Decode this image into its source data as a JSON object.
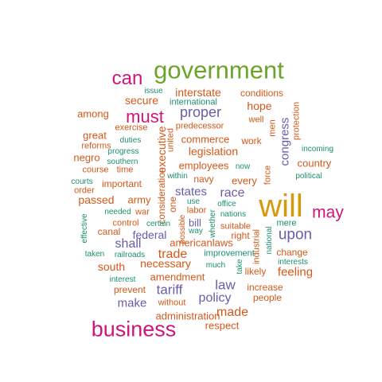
{
  "palette": {
    "green": "#6aa428",
    "magenta": "#d0157a",
    "gold": "#d49a0e",
    "purple": "#6a5caa",
    "orange": "#d4581a",
    "teal": "#1b9070"
  },
  "words": [
    {
      "text": "government",
      "color": "green"
    },
    {
      "text": "can",
      "color": "magenta"
    },
    {
      "text": "business",
      "color": "magenta"
    },
    {
      "text": "will",
      "color": "gold"
    },
    {
      "text": "may",
      "color": "magenta"
    },
    {
      "text": "must",
      "color": "magenta"
    },
    {
      "text": "proper",
      "color": "purple"
    },
    {
      "text": "interstate",
      "color": "orange"
    },
    {
      "text": "conditions",
      "color": "orange"
    },
    {
      "text": "issue",
      "color": "teal"
    },
    {
      "text": "international",
      "color": "teal"
    },
    {
      "text": "secure",
      "color": "orange"
    },
    {
      "text": "hope",
      "color": "orange"
    },
    {
      "text": "among",
      "color": "orange"
    },
    {
      "text": "well",
      "color": "orange"
    },
    {
      "text": "protection",
      "color": "orange"
    },
    {
      "text": "men",
      "color": "orange"
    },
    {
      "text": "predecessor",
      "color": "orange"
    },
    {
      "text": "congress",
      "color": "purple"
    },
    {
      "text": "great",
      "color": "orange"
    },
    {
      "text": "exercise",
      "color": "orange"
    },
    {
      "text": "duties",
      "color": "teal"
    },
    {
      "text": "united",
      "color": "orange"
    },
    {
      "text": "executive",
      "color": "orange"
    },
    {
      "text": "commerce",
      "color": "orange"
    },
    {
      "text": "work",
      "color": "orange"
    },
    {
      "text": "reforms",
      "color": "orange"
    },
    {
      "text": "progress",
      "color": "teal"
    },
    {
      "text": "legislation",
      "color": "orange"
    },
    {
      "text": "incoming",
      "color": "teal"
    },
    {
      "text": "negro",
      "color": "orange"
    },
    {
      "text": "southern",
      "color": "teal"
    },
    {
      "text": "employees",
      "color": "orange"
    },
    {
      "text": "now",
      "color": "teal"
    },
    {
      "text": "country",
      "color": "orange"
    },
    {
      "text": "course",
      "color": "orange"
    },
    {
      "text": "time",
      "color": "orange"
    },
    {
      "text": "within",
      "color": "teal"
    },
    {
      "text": "navy",
      "color": "orange"
    },
    {
      "text": "force",
      "color": "orange"
    },
    {
      "text": "political",
      "color": "teal"
    },
    {
      "text": "courts",
      "color": "teal"
    },
    {
      "text": "important",
      "color": "orange"
    },
    {
      "text": "every",
      "color": "orange"
    },
    {
      "text": "order",
      "color": "orange"
    },
    {
      "text": "consideration",
      "color": "orange"
    },
    {
      "text": "states",
      "color": "purple"
    },
    {
      "text": "race",
      "color": "purple"
    },
    {
      "text": "passed",
      "color": "orange"
    },
    {
      "text": "army",
      "color": "orange"
    },
    {
      "text": "one",
      "color": "orange"
    },
    {
      "text": "use",
      "color": "teal"
    },
    {
      "text": "office",
      "color": "teal"
    },
    {
      "text": "needed",
      "color": "teal"
    },
    {
      "text": "war",
      "color": "orange"
    },
    {
      "text": "labor",
      "color": "orange"
    },
    {
      "text": "nations",
      "color": "teal"
    },
    {
      "text": "control",
      "color": "orange"
    },
    {
      "text": "certain",
      "color": "teal"
    },
    {
      "text": "bill",
      "color": "purple"
    },
    {
      "text": "whether",
      "color": "teal"
    },
    {
      "text": "mere",
      "color": "teal"
    },
    {
      "text": "effective",
      "color": "teal"
    },
    {
      "text": "canal",
      "color": "orange"
    },
    {
      "text": "possible",
      "color": "orange"
    },
    {
      "text": "way",
      "color": "teal"
    },
    {
      "text": "suitable",
      "color": "orange"
    },
    {
      "text": "federal",
      "color": "purple"
    },
    {
      "text": "right",
      "color": "orange"
    },
    {
      "text": "upon",
      "color": "purple"
    },
    {
      "text": "shall",
      "color": "purple"
    },
    {
      "text": "americanlaws",
      "color": "orange"
    },
    {
      "text": "national",
      "color": "teal"
    },
    {
      "text": "industrial",
      "color": "orange"
    },
    {
      "text": "change",
      "color": "orange"
    },
    {
      "text": "taken",
      "color": "teal"
    },
    {
      "text": "railroads",
      "color": "teal"
    },
    {
      "text": "trade",
      "color": "orange"
    },
    {
      "text": "improvement",
      "color": "teal"
    },
    {
      "text": "interests",
      "color": "teal"
    },
    {
      "text": "south",
      "color": "orange"
    },
    {
      "text": "necessary",
      "color": "orange"
    },
    {
      "text": "much",
      "color": "teal"
    },
    {
      "text": "take",
      "color": "teal"
    },
    {
      "text": "likely",
      "color": "orange"
    },
    {
      "text": "feeling",
      "color": "orange"
    },
    {
      "text": "amendment",
      "color": "orange"
    },
    {
      "text": "interest",
      "color": "teal"
    },
    {
      "text": "law",
      "color": "purple"
    },
    {
      "text": "increase",
      "color": "orange"
    },
    {
      "text": "prevent",
      "color": "orange"
    },
    {
      "text": "tariff",
      "color": "purple"
    },
    {
      "text": "policy",
      "color": "purple"
    },
    {
      "text": "people",
      "color": "orange"
    },
    {
      "text": "make",
      "color": "purple"
    },
    {
      "text": "without",
      "color": "orange"
    },
    {
      "text": "made",
      "color": "orange"
    },
    {
      "text": "administration",
      "color": "orange"
    },
    {
      "text": "respect",
      "color": "orange"
    }
  ]
}
